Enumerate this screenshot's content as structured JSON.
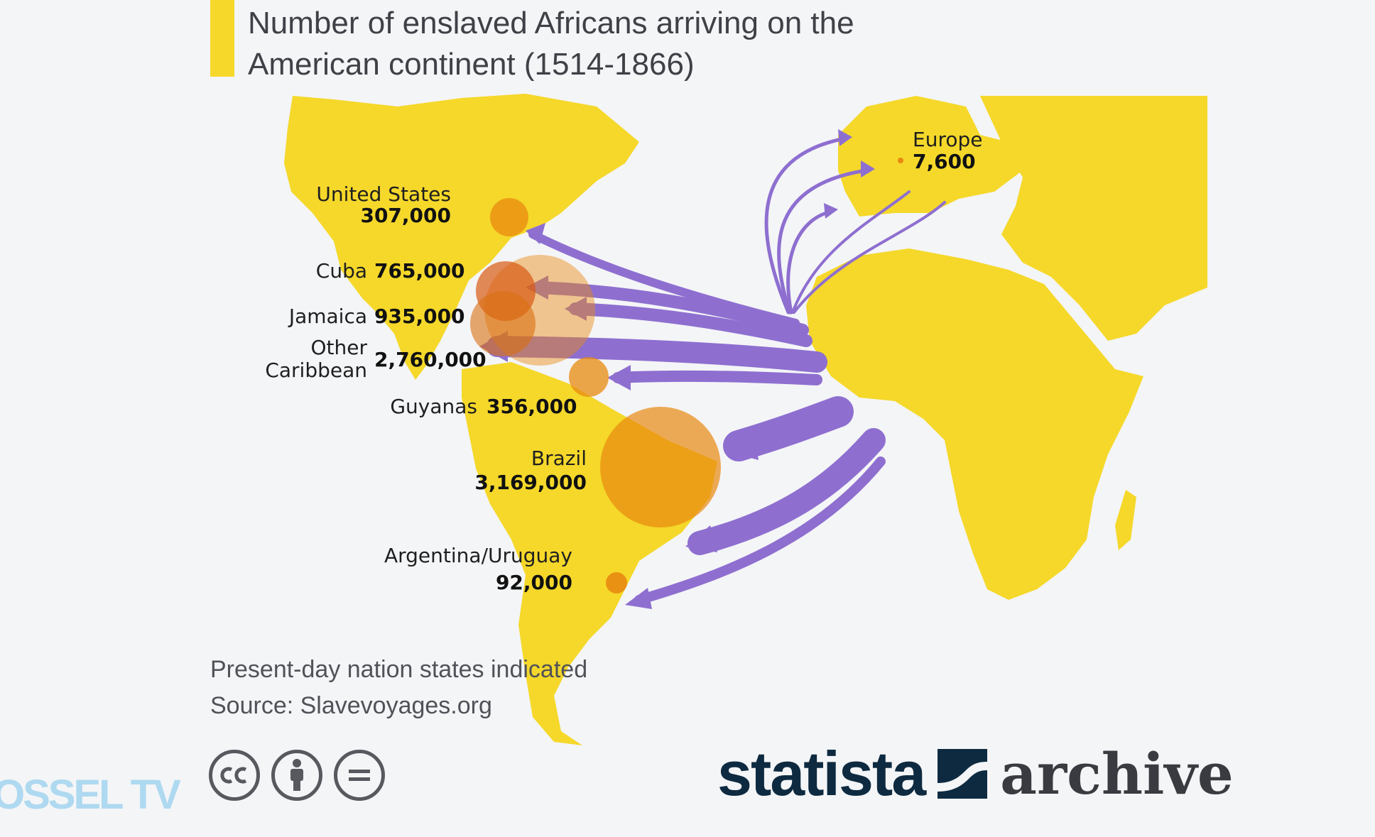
{
  "title": "Number of enslaved Africans arriving on the American continent (1514-1866)",
  "regions": [
    {
      "key": "united_states",
      "label": "United States",
      "value": "307,000",
      "amount": 307000
    },
    {
      "key": "cuba",
      "label": "Cuba",
      "value": "765,000",
      "amount": 765000
    },
    {
      "key": "jamaica",
      "label": "Jamaica",
      "value": "935,000",
      "amount": 935000
    },
    {
      "key": "other_caribbean",
      "label_line1": "Other",
      "label_line2": "Caribbean",
      "value": "2,760,000",
      "amount": 2760000
    },
    {
      "key": "guyanas",
      "label": "Guyanas",
      "value": "356,000",
      "amount": 356000
    },
    {
      "key": "brazil",
      "label": "Brazil",
      "value": "3,169,000",
      "amount": 3169000
    },
    {
      "key": "argentina_uruguay",
      "label": "Argentina/Uruguay",
      "value": "92,000",
      "amount": 92000
    },
    {
      "key": "europe",
      "label": "Europe",
      "value": "7,600",
      "amount": 7600
    }
  ],
  "notes": {
    "line1": "Present-day nation states indicated",
    "line2": "Source: Slavevoyages.org"
  },
  "license_icons": [
    "cc-icon",
    "attribution-icon",
    "no-derivatives-icon"
  ],
  "brand": {
    "name": "statista",
    "suffix": "archive"
  },
  "watermark": "OSSEL TV",
  "colors": {
    "land": "#f5d82a",
    "bubble": "#e8890f",
    "flow": "#8e6fd0",
    "title_bar": "#f5d82a",
    "background": "#f4f5f7"
  }
}
